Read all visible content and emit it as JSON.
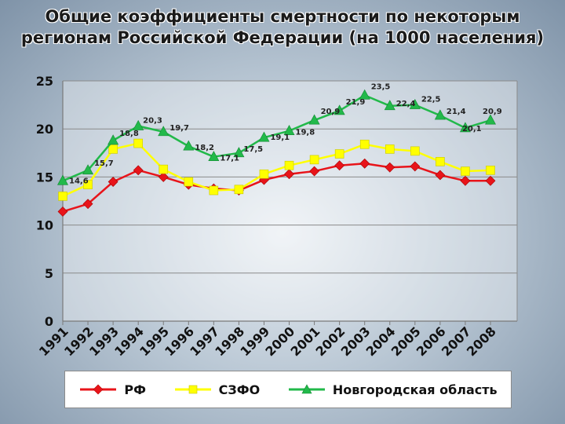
{
  "title_line1": "Общие коэффициенты смертности по некоторым",
  "title_line2": "регионам Российской Федерации (на 1000 населения)",
  "chart_data": {
    "type": "line",
    "title": "Общие коэффициенты смертности по некоторым регионам Российской Федерации (на 1000 населения)",
    "xlabel": "",
    "ylabel": "",
    "ylim": [
      0,
      25
    ],
    "yticks": [
      "0",
      "5",
      "10",
      "15",
      "20",
      "25"
    ],
    "categories": [
      "1991",
      "1992",
      "1993",
      "1994",
      "1995",
      "1996",
      "1997",
      "1998",
      "1999",
      "2000",
      "2001",
      "2002",
      "2003",
      "2004",
      "2005",
      "2006",
      "2007",
      "2008"
    ],
    "grid": true,
    "legend": "bottom",
    "series": [
      {
        "name": "РФ",
        "color": "#e8141a",
        "marker": "diamond",
        "values": [
          11.4,
          12.2,
          14.5,
          15.7,
          15.0,
          14.2,
          13.8,
          13.6,
          14.7,
          15.3,
          15.6,
          16.2,
          16.4,
          16.0,
          16.1,
          15.2,
          14.6,
          14.6
        ]
      },
      {
        "name": "СЗФО",
        "color": "#ffff00",
        "marker": "square",
        "values": [
          13.0,
          14.2,
          17.9,
          18.5,
          15.8,
          14.5,
          13.6,
          13.7,
          15.3,
          16.2,
          16.8,
          17.4,
          18.4,
          17.9,
          17.7,
          16.6,
          15.6,
          15.7
        ]
      },
      {
        "name": "Новгородская область",
        "color": "#22b94a",
        "marker": "triangle",
        "values": [
          14.6,
          15.7,
          18.8,
          20.3,
          19.7,
          18.2,
          17.1,
          17.5,
          19.1,
          19.8,
          20.9,
          21.9,
          23.5,
          22.4,
          22.5,
          21.4,
          20.1,
          20.9
        ],
        "data_labels": [
          "14,6",
          "15,7",
          "18,8",
          "20,3",
          "19,7",
          "18,2",
          "17,1",
          "17,5",
          "19,1",
          "19,8",
          "20,9",
          "21,9",
          "23,5",
          "22,4",
          "22,5",
          "21,4",
          "20,1",
          "20,9"
        ]
      }
    ]
  }
}
